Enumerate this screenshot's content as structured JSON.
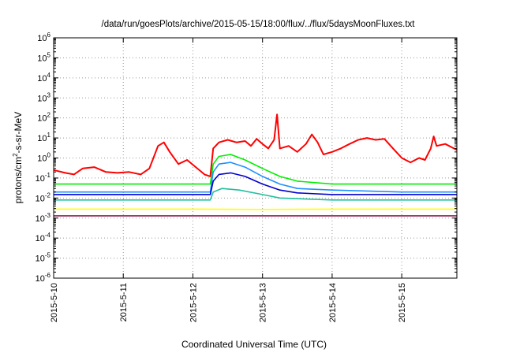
{
  "chart_data": {
    "type": "line",
    "title": "/data/run/goesPlots/archive/2015-05-15/18:00/flux/../flux/5daysMoonFluxes.txt",
    "xlabel": "Coordinated Universal Time (UTC)",
    "ylabel": {
      "pre": "protons/cm",
      "sup": "2",
      "post": "-s-sr-MeV"
    },
    "y_scale": "log",
    "ylim": [
      1e-06,
      1000000.0
    ],
    "xlim": [
      "2015-05-10",
      "2015-05-15T19:00"
    ],
    "grid": "dotted",
    "legend": "none",
    "x_ticks": [
      "2015-5-10",
      "2015-5-11",
      "2015-5-12",
      "2015-5-13",
      "2015-5-14",
      "2015-5-15"
    ],
    "y_ticks": [
      {
        "base": "10",
        "exp": "-6"
      },
      {
        "base": "10",
        "exp": "-5"
      },
      {
        "base": "10",
        "exp": "-4"
      },
      {
        "base": "10",
        "exp": "-3"
      },
      {
        "base": "10",
        "exp": "-2"
      },
      {
        "base": "10",
        "exp": "-1"
      },
      {
        "base": "10",
        "exp": "0"
      },
      {
        "base": "10",
        "exp": "1"
      },
      {
        "base": "10",
        "exp": "2"
      },
      {
        "base": "10",
        "exp": "3"
      },
      {
        "base": "10",
        "exp": "4"
      },
      {
        "base": "10",
        "exp": "5"
      },
      {
        "base": "10",
        "exp": "6"
      }
    ],
    "series": [
      {
        "color": "#ff0000",
        "points": [
          [
            "2015-05-10T00:00",
            0.25
          ],
          [
            "2015-05-10T04:00",
            0.18
          ],
          [
            "2015-05-10T07:00",
            0.15
          ],
          [
            "2015-05-10T10:00",
            0.3
          ],
          [
            "2015-05-10T14:00",
            0.35
          ],
          [
            "2015-05-10T18:00",
            0.2
          ],
          [
            "2015-05-10T22:00",
            0.18
          ],
          [
            "2015-05-11T02:00",
            0.2
          ],
          [
            "2015-05-11T06:00",
            0.15
          ],
          [
            "2015-05-11T09:00",
            0.3
          ],
          [
            "2015-05-11T12:00",
            4.0
          ],
          [
            "2015-05-11T14:00",
            6.0
          ],
          [
            "2015-05-11T16:00",
            2.0
          ],
          [
            "2015-05-11T19:00",
            0.5
          ],
          [
            "2015-05-11T22:00",
            0.8
          ],
          [
            "2015-05-12T01:00",
            0.35
          ],
          [
            "2015-05-12T04:00",
            0.15
          ],
          [
            "2015-05-12T06:00",
            0.12
          ],
          [
            "2015-05-12T07:00",
            3.0
          ],
          [
            "2015-05-12T09:00",
            6.0
          ],
          [
            "2015-05-12T12:00",
            8.0
          ],
          [
            "2015-05-12T15:00",
            6.0
          ],
          [
            "2015-05-12T18:00",
            7.0
          ],
          [
            "2015-05-12T20:00",
            4.0
          ],
          [
            "2015-05-12T22:00",
            9.0
          ],
          [
            "2015-05-13T00:00",
            5.0
          ],
          [
            "2015-05-13T02:00",
            3.0
          ],
          [
            "2015-05-13T04:00",
            8.0
          ],
          [
            "2015-05-13T05:00",
            150.0
          ],
          [
            "2015-05-13T06:00",
            3.0
          ],
          [
            "2015-05-13T09:00",
            4.0
          ],
          [
            "2015-05-13T12:00",
            2.0
          ],
          [
            "2015-05-13T15:00",
            5.0
          ],
          [
            "2015-05-13T17:00",
            15.0
          ],
          [
            "2015-05-13T19:00",
            6.0
          ],
          [
            "2015-05-13T21:00",
            1.5
          ],
          [
            "2015-05-14T00:00",
            2.0
          ],
          [
            "2015-05-14T03:00",
            3.0
          ],
          [
            "2015-05-14T06:00",
            5.0
          ],
          [
            "2015-05-14T09:00",
            8.0
          ],
          [
            "2015-05-14T12:00",
            10.0
          ],
          [
            "2015-05-14T15:00",
            8.0
          ],
          [
            "2015-05-14T18:00",
            9.0
          ],
          [
            "2015-05-14T21:00",
            3.0
          ],
          [
            "2015-05-15T00:00",
            1.0
          ],
          [
            "2015-05-15T03:00",
            0.6
          ],
          [
            "2015-05-15T06:00",
            1.0
          ],
          [
            "2015-05-15T08:00",
            0.8
          ],
          [
            "2015-05-15T10:00",
            3.0
          ],
          [
            "2015-05-15T11:00",
            12.0
          ],
          [
            "2015-05-15T12:00",
            4.0
          ],
          [
            "2015-05-15T15:00",
            5.0
          ],
          [
            "2015-05-15T18:00",
            3.0
          ],
          [
            "2015-05-15T19:00",
            2.5
          ]
        ]
      },
      {
        "color": "#00ee00",
        "points": [
          [
            "2015-05-10T00:00",
            0.05
          ],
          [
            "2015-05-11T00:00",
            0.05
          ],
          [
            "2015-05-12T06:00",
            0.05
          ],
          [
            "2015-05-12T07:00",
            0.5
          ],
          [
            "2015-05-12T09:00",
            1.2
          ],
          [
            "2015-05-12T13:00",
            1.5
          ],
          [
            "2015-05-12T18:00",
            0.8
          ],
          [
            "2015-05-13T00:00",
            0.3
          ],
          [
            "2015-05-13T06:00",
            0.12
          ],
          [
            "2015-05-13T12:00",
            0.07
          ],
          [
            "2015-05-14T00:00",
            0.05
          ],
          [
            "2015-05-15T00:00",
            0.05
          ],
          [
            "2015-05-15T19:00",
            0.05
          ]
        ]
      },
      {
        "color": "#1e90ff",
        "points": [
          [
            "2015-05-10T00:00",
            0.02
          ],
          [
            "2015-05-11T00:00",
            0.02
          ],
          [
            "2015-05-12T06:00",
            0.02
          ],
          [
            "2015-05-12T07:00",
            0.2
          ],
          [
            "2015-05-12T09:00",
            0.5
          ],
          [
            "2015-05-12T13:00",
            0.6
          ],
          [
            "2015-05-12T18:00",
            0.35
          ],
          [
            "2015-05-13T00:00",
            0.12
          ],
          [
            "2015-05-13T06:00",
            0.05
          ],
          [
            "2015-05-13T12:00",
            0.03
          ],
          [
            "2015-05-14T00:00",
            0.025
          ],
          [
            "2015-05-15T00:00",
            0.02
          ],
          [
            "2015-05-15T19:00",
            0.02
          ]
        ]
      },
      {
        "color": "#0000cd",
        "points": [
          [
            "2015-05-10T00:00",
            0.015
          ],
          [
            "2015-05-11T00:00",
            0.015
          ],
          [
            "2015-05-12T06:00",
            0.015
          ],
          [
            "2015-05-12T07:00",
            0.07
          ],
          [
            "2015-05-12T09:00",
            0.15
          ],
          [
            "2015-05-12T13:00",
            0.18
          ],
          [
            "2015-05-12T18:00",
            0.12
          ],
          [
            "2015-05-13T00:00",
            0.05
          ],
          [
            "2015-05-13T06:00",
            0.025
          ],
          [
            "2015-05-13T12:00",
            0.018
          ],
          [
            "2015-05-14T00:00",
            0.015
          ],
          [
            "2015-05-15T00:00",
            0.015
          ],
          [
            "2015-05-15T19:00",
            0.015
          ]
        ]
      },
      {
        "color": "#20c0a0",
        "points": [
          [
            "2015-05-10T00:00",
            0.008
          ],
          [
            "2015-05-11T00:00",
            0.008
          ],
          [
            "2015-05-12T06:00",
            0.008
          ],
          [
            "2015-05-12T07:00",
            0.02
          ],
          [
            "2015-05-12T10:00",
            0.03
          ],
          [
            "2015-05-12T16:00",
            0.025
          ],
          [
            "2015-05-13T00:00",
            0.015
          ],
          [
            "2015-05-13T06:00",
            0.01
          ],
          [
            "2015-05-14T00:00",
            0.008
          ],
          [
            "2015-05-15T00:00",
            0.008
          ],
          [
            "2015-05-15T19:00",
            0.008
          ]
        ]
      },
      {
        "color": "#ffff00",
        "points": [
          [
            "2015-05-10T00:00",
            0.0028
          ],
          [
            "2015-05-11T00:00",
            0.0028
          ],
          [
            "2015-05-12T00:00",
            0.0028
          ],
          [
            "2015-05-13T00:00",
            0.0027
          ],
          [
            "2015-05-14T00:00",
            0.0028
          ],
          [
            "2015-05-15T00:00",
            0.0028
          ],
          [
            "2015-05-15T19:00",
            0.0028
          ]
        ]
      },
      {
        "color": "#8b2252",
        "points": [
          [
            "2015-05-10T00:00",
            0.0013
          ],
          [
            "2015-05-11T00:00",
            0.0013
          ],
          [
            "2015-05-12T00:00",
            0.0013
          ],
          [
            "2015-05-13T00:00",
            0.0013
          ],
          [
            "2015-05-14T00:00",
            0.0013
          ],
          [
            "2015-05-15T00:00",
            0.0013
          ],
          [
            "2015-05-15T19:00",
            0.0013
          ]
        ]
      }
    ]
  }
}
